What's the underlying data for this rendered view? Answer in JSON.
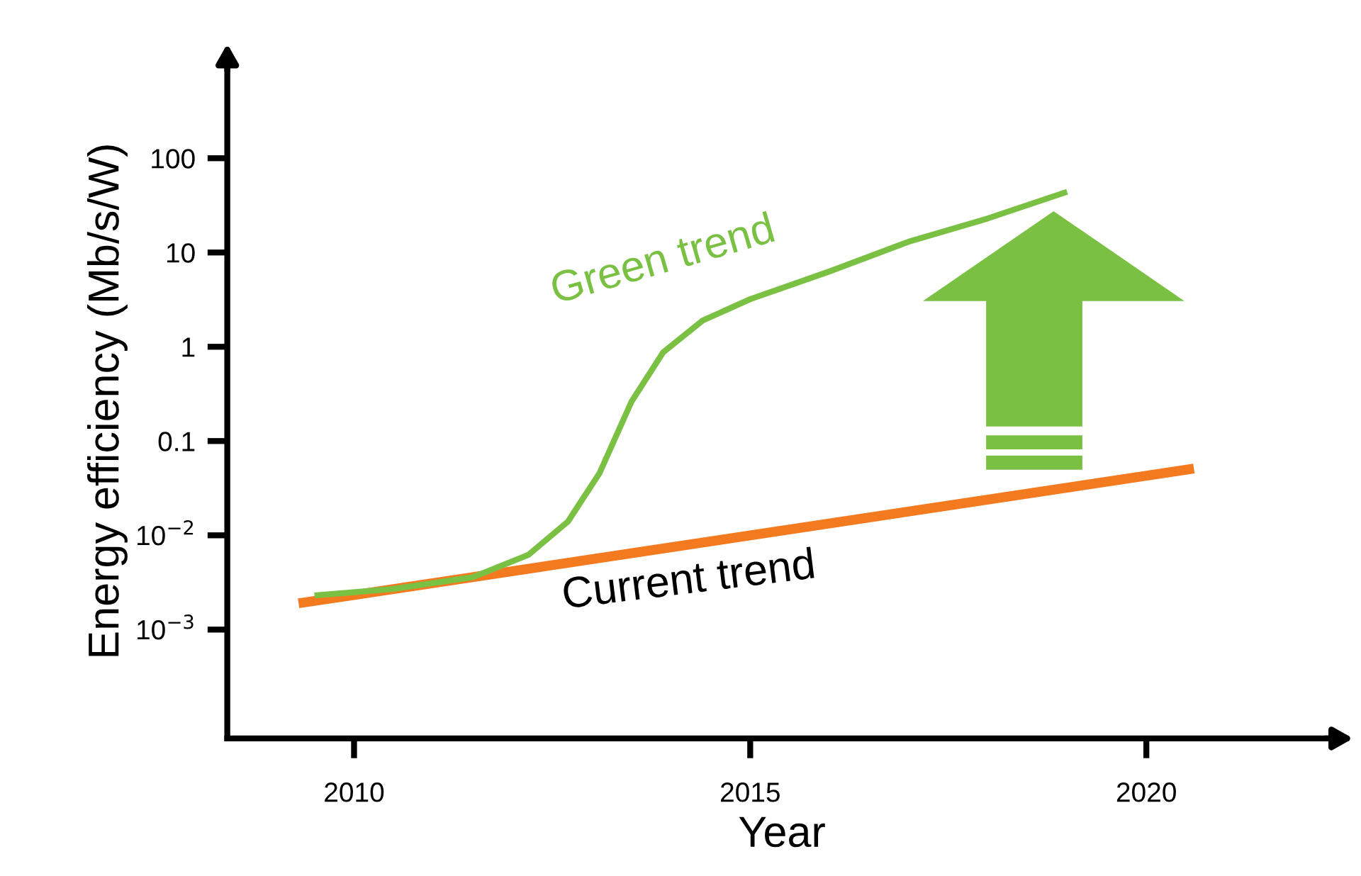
{
  "chart_data": {
    "type": "line",
    "xlabel": "Year",
    "ylabel": "Energy efficiency (Mb/s/W)",
    "log": "y",
    "xlim": [
      2008.4,
      2022.4
    ],
    "ylim": [
      7e-05,
      1000
    ],
    "xticks": [
      2010,
      2015,
      2020
    ],
    "yticks": [
      {
        "value": 0.001,
        "label": "10$^{−3}$"
      },
      {
        "value": 0.01,
        "label": "10$^{−2}$"
      },
      {
        "value": 0.1,
        "label": "0.1"
      },
      {
        "value": 1,
        "label": "1"
      },
      {
        "value": 10,
        "label": "10"
      },
      {
        "value": 100,
        "label": "100"
      }
    ],
    "grid": false,
    "legend": false,
    "marker": "none",
    "line_style": "solid",
    "series": [
      {
        "name": "Green trend",
        "color": "#7ac143",
        "x": [
          2009.5,
          2010.5,
          2011.5,
          2012.2,
          2012.7,
          2013.1,
          2013.5,
          2013.9,
          2014.4,
          2015.0,
          2016.0,
          2017.0,
          2018.0,
          2019.0
        ],
        "values": [
          0.0023,
          0.0027,
          0.0036,
          0.0062,
          0.014,
          0.046,
          0.26,
          0.87,
          1.9,
          3.2,
          6.3,
          13,
          23,
          44
        ]
      },
      {
        "name": "Current trend",
        "color": "#f47a20",
        "x": [
          2009.3,
          2020.6
        ],
        "values": [
          0.0019,
          0.051
        ]
      }
    ]
  }
}
